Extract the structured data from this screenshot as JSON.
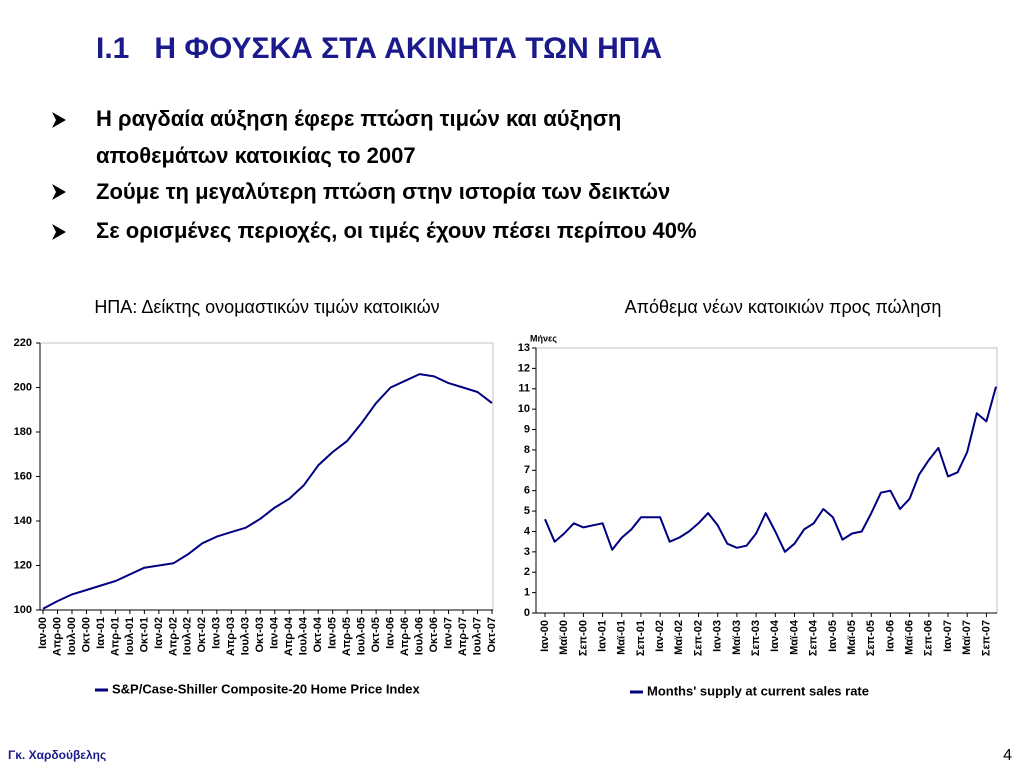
{
  "title": "I.1   Η ΦΟΥΣΚΑ ΣΤΑ ΑΚΙΝΗΤΑ ΤΩΝ ΗΠΑ",
  "bullets": [
    [
      "Η ραγδαία αύξηση έφερε πτώση τιμών και αύξηση",
      "αποθεμάτων κατοικίας το 2007"
    ],
    [
      "Ζούμε τη μεγαλύτερη πτώση στην ιστορία των δεικτών"
    ],
    [
      "Σε ορισμένες περιοχές, οι τιμές έχουν πέσει περίπου 40%"
    ]
  ],
  "footer": "Γκ. Χαρδούβελης",
  "page_number": 4,
  "chart_data": [
    {
      "type": "line",
      "title": "ΗΠΑ: Δείκτης ονομαστικών τιμών κατοικιών",
      "categories": [
        "Ιαν-00",
        "Απρ-00",
        "Ιουλ-00",
        "Οκτ-00",
        "Ιαν-01",
        "Απρ-01",
        "Ιουλ-01",
        "Οκτ-01",
        "Ιαν-02",
        "Απρ-02",
        "Ιουλ-02",
        "Οκτ-02",
        "Ιαν-03",
        "Απρ-03",
        "Ιουλ-03",
        "Οκτ-03",
        "Ιαν-04",
        "Απρ-04",
        "Ιουλ-04",
        "Οκτ-04",
        "Ιαν-05",
        "Απρ-05",
        "Ιουλ-05",
        "Οκτ-05",
        "Ιαν-06",
        "Απρ-06",
        "Ιουλ-06",
        "Οκτ-06",
        "Ιαν-07",
        "Απρ-07",
        "Ιουλ-07",
        "Οκτ-07"
      ],
      "series": [
        {
          "name": "S&P/Case-Shiller Composite-20 Home Price Index",
          "color": "#000080",
          "values": [
            100.6,
            104,
            107,
            109,
            111,
            113,
            116,
            119,
            120,
            121,
            125,
            130,
            133,
            135,
            137,
            141,
            146,
            150,
            156,
            165,
            171,
            176,
            184,
            193,
            200,
            203,
            206,
            205,
            202,
            200,
            198,
            193
          ]
        }
      ],
      "ylim": [
        100,
        220
      ],
      "yticks": [
        100,
        120,
        140,
        160,
        180,
        200,
        220
      ],
      "grid": false
    },
    {
      "type": "line",
      "title": "Απόθεμα νέων κατοικιών προς πώληση",
      "y_label": "Μήνες",
      "categories": [
        "Ιαν-00",
        null,
        "Μαϊ-00",
        null,
        "Σεπ-00",
        null,
        "Ιαν-01",
        null,
        "Μαϊ-01",
        null,
        "Σεπ-01",
        null,
        "Ιαν-02",
        null,
        "Μαϊ-02",
        null,
        "Σεπ-02",
        null,
        "Ιαν-03",
        null,
        "Μαϊ-03",
        null,
        "Σεπ-03",
        null,
        "Ιαν-04",
        null,
        "Μαϊ-04",
        null,
        "Σεπ-04",
        null,
        "Ιαν-05",
        null,
        "Μαϊ-05",
        null,
        "Σεπ-05",
        null,
        "Ιαν-06",
        null,
        "Μαϊ-06",
        null,
        "Σεπ-06",
        null,
        "Ιαν-07",
        null,
        "Μαϊ-07",
        null,
        "Σεπ-07",
        null
      ],
      "series": [
        {
          "name": "Months' supply at current sales rate",
          "color": "#000080",
          "values": [
            4.6,
            3.5,
            3.9,
            4.4,
            4.2,
            4.3,
            4.4,
            3.1,
            3.7,
            4.1,
            4.7,
            4.7,
            4.7,
            3.5,
            3.7,
            4.0,
            4.4,
            4.9,
            4.3,
            3.4,
            3.2,
            3.3,
            3.9,
            4.9,
            4.0,
            3.0,
            3.4,
            4.1,
            4.4,
            5.1,
            4.7,
            3.6,
            3.9,
            4.0,
            4.9,
            5.9,
            6.0,
            5.1,
            5.6,
            6.8,
            7.5,
            8.1,
            6.7,
            6.9,
            7.9,
            9.8,
            9.4,
            11.1
          ]
        }
      ],
      "ylim": [
        0,
        13
      ],
      "yticks": [
        0,
        1,
        2,
        3,
        4,
        5,
        6,
        7,
        8,
        9,
        10,
        11,
        12,
        13
      ],
      "grid": false
    }
  ]
}
